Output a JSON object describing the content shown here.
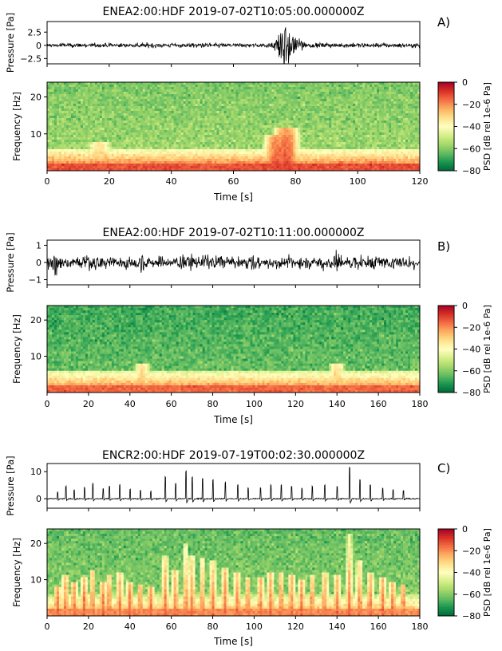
{
  "figure": {
    "panels": [
      {
        "letter": "A)",
        "title": "ENEA2:00:HDF 2019-07-02T10:05:00.000000Z",
        "waveform_ylabel": "Pressure [Pa]",
        "waveform_yticks": [
          "2.5",
          "0",
          "−2.5"
        ],
        "waveform_ytick_values": [
          2.5,
          0,
          -2.5
        ],
        "spec_ylabel": "Frequency [Hz]",
        "spec_yticks": [
          "20",
          "10"
        ],
        "xticks": [
          "0",
          "20",
          "40",
          "60",
          "80",
          "100",
          "120"
        ],
        "xlabel": "Time [s]",
        "colorbar_label": "PSD [dB rel 1e-6 Pa]",
        "colorbar_ticks": [
          "0",
          "−20",
          "−40",
          "−60",
          "−80"
        ]
      },
      {
        "letter": "B)",
        "title": "ENEA2:00:HDF 2019-07-02T10:11:00.000000Z",
        "waveform_ylabel": "Pressure [Pa]",
        "waveform_yticks": [
          "1",
          "0",
          "−1"
        ],
        "waveform_ytick_values": [
          1,
          0,
          -1
        ],
        "spec_ylabel": "Frequency [Hz]",
        "spec_yticks": [
          "20",
          "10"
        ],
        "xticks": [
          "0",
          "20",
          "40",
          "60",
          "80",
          "100",
          "120",
          "140",
          "160",
          "180"
        ],
        "xlabel": "Time [s]",
        "colorbar_label": "PSD [dB rel 1e-6 Pa]",
        "colorbar_ticks": [
          "0",
          "−20",
          "−40",
          "−60",
          "−80"
        ]
      },
      {
        "letter": "C)",
        "title": "ENCR2:00:HDF 2019-07-19T00:02:30.000000Z",
        "waveform_ylabel": "Pressure [Pa]",
        "waveform_yticks": [
          "10",
          "0"
        ],
        "waveform_ytick_values": [
          10,
          0
        ],
        "spec_ylabel": "Frequency [Hz]",
        "spec_yticks": [
          "20",
          "10"
        ],
        "xticks": [
          "0",
          "20",
          "40",
          "60",
          "80",
          "100",
          "120",
          "140",
          "160",
          "180"
        ],
        "xlabel": "Time [s]",
        "colorbar_label": "PSD [dB rel 1e-6 Pa]",
        "colorbar_ticks": [
          "0",
          "−20",
          "−40",
          "−60",
          "−80"
        ]
      }
    ]
  },
  "chart_data": [
    {
      "type": "line",
      "title": "ENEA2:00:HDF 2019-07-02T10:05:00.000000Z",
      "xlabel": "",
      "ylabel": "Pressure [Pa]",
      "xlim": [
        0,
        120
      ],
      "ylim": [
        -3.5,
        4.5
      ],
      "noise_amplitude": 0.5,
      "bursts": [
        {
          "t": 76,
          "amp": 3.8,
          "width": 2.5
        },
        {
          "t": 79,
          "amp": 2.2,
          "width": 3
        }
      ]
    },
    {
      "type": "heatmap",
      "xlabel": "Time [s]",
      "ylabel": "Frequency [Hz]",
      "xlim": [
        0,
        120
      ],
      "ylim": [
        0,
        24
      ],
      "colorbar": {
        "label": "PSD [dB rel 1e-6 Pa]",
        "range": [
          -80,
          0
        ]
      },
      "colors": [
        "#006837",
        "#1a9850",
        "#66bd63",
        "#a6d96a",
        "#d9ef8b",
        "#ffffbf",
        "#fee08b",
        "#fdae61",
        "#f46d43",
        "#d73027",
        "#a50026"
      ],
      "background_db": -55,
      "low_frequency_band_db": -12,
      "events": [
        {
          "t": 17,
          "db": -25,
          "height_hz": 8
        },
        {
          "t": 74,
          "db": -10,
          "height_hz": 10
        },
        {
          "t": 77,
          "db": -8,
          "height_hz": 12
        }
      ]
    },
    {
      "type": "line",
      "title": "ENEA2:00:HDF 2019-07-02T10:11:00.000000Z",
      "xlabel": "",
      "ylabel": "Pressure [Pa]",
      "xlim": [
        0,
        180
      ],
      "ylim": [
        -1.3,
        1.3
      ],
      "noise_amplitude": 0.45,
      "bursts": [
        {
          "t": 46,
          "amp": 1.0,
          "width": 1
        },
        {
          "t": 140,
          "amp": 1.0,
          "width": 1
        },
        {
          "t": 4,
          "amp": 1.0,
          "width": 1
        }
      ]
    },
    {
      "type": "heatmap",
      "xlabel": "Time [s]",
      "ylabel": "Frequency [Hz]",
      "xlim": [
        0,
        180
      ],
      "ylim": [
        0,
        24
      ],
      "colorbar": {
        "label": "PSD [dB rel 1e-6 Pa]",
        "range": [
          -80,
          0
        ]
      },
      "colors": [
        "#006837",
        "#1a9850",
        "#66bd63",
        "#a6d96a",
        "#d9ef8b",
        "#ffffbf",
        "#fee08b",
        "#fdae61",
        "#f46d43",
        "#d73027",
        "#a50026"
      ],
      "background_db": -62,
      "low_frequency_band_db": -15,
      "events": [
        {
          "t": 46,
          "db": -25,
          "height_hz": 8
        },
        {
          "t": 140,
          "db": -25,
          "height_hz": 8
        }
      ]
    },
    {
      "type": "line",
      "title": "ENCR2:00:HDF 2019-07-19T00:02:30.000000Z",
      "xlabel": "",
      "ylabel": "Pressure [Pa]",
      "xlim": [
        0,
        180
      ],
      "ylim": [
        -3.5,
        13
      ],
      "noise_amplitude": 0.25,
      "pulse_times": [
        5,
        9,
        13,
        18,
        22,
        27,
        30,
        35,
        40,
        45,
        50,
        57,
        62,
        67,
        70,
        75,
        80,
        86,
        92,
        97,
        103,
        108,
        113,
        118,
        123,
        128,
        134,
        140,
        146,
        151,
        156,
        162,
        167,
        172
      ],
      "pulse_amps": [
        2.5,
        4.5,
        3.2,
        4,
        5.5,
        3.5,
        4.5,
        5,
        3.5,
        3,
        2.5,
        8,
        5.5,
        10,
        8,
        7.5,
        7,
        6,
        5,
        4,
        4,
        5,
        5,
        4.5,
        3.8,
        4.5,
        5,
        4.5,
        11.5,
        7,
        5,
        4,
        3.5,
        3
      ]
    },
    {
      "type": "heatmap",
      "xlabel": "Time [s]",
      "ylabel": "Frequency [Hz]",
      "xlim": [
        0,
        180
      ],
      "ylim": [
        0,
        24
      ],
      "colorbar": {
        "label": "PSD [dB rel 1e-6 Pa]",
        "range": [
          -80,
          0
        ]
      },
      "colors": [
        "#006837",
        "#1a9850",
        "#66bd63",
        "#a6d96a",
        "#d9ef8b",
        "#ffffbf",
        "#fee08b",
        "#fdae61",
        "#f46d43",
        "#d73027",
        "#a50026"
      ],
      "background_db": -58,
      "low_frequency_band_db": -20,
      "event_db": -12
    }
  ]
}
